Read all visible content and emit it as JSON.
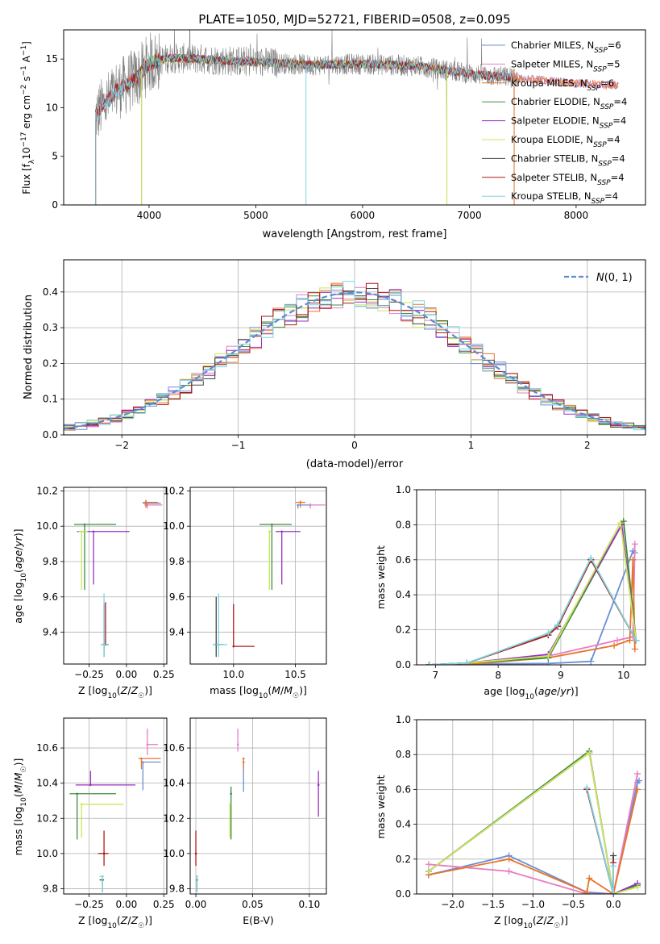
{
  "figure_title": "PLATE=1050, MJD=52721, FIBERID=0508, z=0.095",
  "colors": {
    "Chabrier MILES": "#6b8fd6",
    "Salpeter MILES": "#e87cc4",
    "Kroupa MILES": "#e8742a",
    "Chabrier ELODIE": "#3f8c3f",
    "Salpeter ELODIE": "#9b2fc2",
    "Kroupa ELODIE": "#c8e85a",
    "Chabrier STELIB": "#444444",
    "Salpeter STELIB": "#b01818",
    "Kroupa STELIB": "#7fd6e0",
    "gaussian": "#5b8bd0",
    "data": "#808080"
  },
  "chart_data": [
    {
      "id": "spectrum",
      "type": "line",
      "xlabel": "wavelength [Angstrom, rest frame]",
      "ylabel": "Flux [f_λ10^-17 erg cm^-2 s^-1 A^-1]",
      "xlim": [
        3200,
        8650
      ],
      "ylim": [
        0,
        18
      ],
      "xticks": [
        4000,
        5000,
        6000,
        7000,
        8000
      ],
      "yticks": [
        0,
        5,
        10,
        15
      ],
      "legend_position": "top-right",
      "series": [
        {
          "name": "Chabrier MILES, N_SSP=6"
        },
        {
          "name": "Salpeter MILES, N_SSP=5"
        },
        {
          "name": "Kroupa MILES, N_SSP=6"
        },
        {
          "name": "Chabrier ELODIE, N_SSP=4"
        },
        {
          "name": "Salpeter ELODIE, N_SSP=4"
        },
        {
          "name": "Kroupa ELODIE, N_SSP=4"
        },
        {
          "name": "Chabrier STELIB, N_SSP=4"
        },
        {
          "name": "Salpeter STELIB, N_SSP=4"
        },
        {
          "name": "Kroupa STELIB, N_SSP=4"
        }
      ],
      "continuum": [
        [
          3500,
          9.2
        ],
        [
          3600,
          10.5
        ],
        [
          3700,
          11.8
        ],
        [
          3800,
          12.5
        ],
        [
          3900,
          13.2
        ],
        [
          4000,
          14.6
        ],
        [
          4200,
          15.1
        ],
        [
          4500,
          15.0
        ],
        [
          4800,
          14.8
        ],
        [
          5000,
          14.7
        ],
        [
          5500,
          14.4
        ],
        [
          6000,
          14.5
        ],
        [
          6500,
          14.3
        ],
        [
          7000,
          13.5
        ],
        [
          7500,
          13.0
        ],
        [
          8000,
          12.5
        ],
        [
          8400,
          12.3
        ]
      ],
      "model_end_drops": {
        "MILES": 7420,
        "STELIB": 7420,
        "ELODIE": [
          3930,
          6790
        ]
      }
    },
    {
      "id": "residuals",
      "type": "histogram",
      "xlabel": "(data-model)/error",
      "ylabel": "Normed distribution",
      "xlim": [
        -2.5,
        2.5
      ],
      "ylim": [
        0,
        0.49
      ],
      "xticks": [
        -2,
        -1,
        0,
        1,
        2
      ],
      "yticks": [
        0.0,
        0.1,
        0.2,
        0.3,
        0.4
      ],
      "grid": true,
      "legend_label": "N(0,1)",
      "legend_position": "top-right",
      "bin_width": 0.1
    },
    {
      "id": "age_vs_Z",
      "type": "scatter",
      "xlabel": "Z [log10(Z/Z☉)]",
      "ylabel": "age  [log10(age/yr)]",
      "xlim": [
        -0.42,
        0.27
      ],
      "ylim": [
        9.22,
        10.22
      ],
      "xticks": [
        -0.25,
        0.0,
        0.25
      ],
      "yticks": [
        9.4,
        9.6,
        9.8,
        10.0,
        10.2
      ],
      "grid": true,
      "points": [
        {
          "model": "Chabrier MILES",
          "x": 0.13,
          "y": 10.13
        },
        {
          "model": "Salpeter MILES",
          "x": 0.14,
          "y": 10.12
        },
        {
          "model": "Kroupa MILES",
          "x": 0.13,
          "y": 10.135
        },
        {
          "model": "Chabrier ELODIE",
          "x": -0.28,
          "y": 10.01
        },
        {
          "model": "Salpeter ELODIE",
          "x": -0.22,
          "y": 9.97
        },
        {
          "model": "Kroupa ELODIE",
          "x": -0.3,
          "y": 9.97
        },
        {
          "model": "Chabrier STELIB",
          "x": -0.15,
          "y": 9.33
        },
        {
          "model": "Salpeter STELIB",
          "x": -0.14,
          "y": 9.33
        },
        {
          "model": "Kroupa STELIB",
          "x": -0.15,
          "y": 9.33
        }
      ]
    },
    {
      "id": "age_vs_mass",
      "type": "scatter",
      "xlabel": "mass [log10(M/M☉)]",
      "ylabel": "",
      "xlim": [
        9.65,
        10.75
      ],
      "ylim": [
        9.22,
        10.22
      ],
      "xticks": [
        10.0,
        10.5
      ],
      "yticks": [
        9.4,
        9.6,
        9.8,
        10.0,
        10.2
      ],
      "grid": true,
      "points": [
        {
          "model": "Chabrier MILES",
          "x": 10.52,
          "y": 10.12
        },
        {
          "model": "Salpeter MILES",
          "x": 10.62,
          "y": 10.12
        },
        {
          "model": "Kroupa MILES",
          "x": 10.54,
          "y": 10.135
        },
        {
          "model": "Chabrier ELODIE",
          "x": 10.31,
          "y": 10.01
        },
        {
          "model": "Salpeter ELODIE",
          "x": 10.39,
          "y": 9.97
        },
        {
          "model": "Kroupa ELODIE",
          "x": 10.29,
          "y": 9.97
        },
        {
          "model": "Chabrier STELIB",
          "x": 9.86,
          "y": 9.33
        },
        {
          "model": "Salpeter STELIB",
          "x": 10.0,
          "y": 9.32
        },
        {
          "model": "Kroupa STELIB",
          "x": 9.88,
          "y": 9.33
        }
      ]
    },
    {
      "id": "weight_vs_age",
      "type": "line",
      "xlabel": "age  [log10(age/yr)]",
      "ylabel": "mass weight",
      "xlim": [
        6.7,
        10.35
      ],
      "ylim": [
        0,
        1.0
      ],
      "xticks": [
        7,
        8,
        9,
        10
      ],
      "yticks": [
        0.0,
        0.2,
        0.4,
        0.6,
        0.8,
        1.0
      ],
      "grid": true,
      "series": [
        {
          "model": "Chabrier MILES",
          "x": [
            6.9,
            7.5,
            8.8,
            9.48,
            10.15,
            10.18
          ],
          "y": [
            0.0,
            0.005,
            0.008,
            0.02,
            0.65,
            0.64
          ]
        },
        {
          "model": "Salpeter MILES",
          "x": [
            6.9,
            7.6,
            8.8,
            9.9,
            10.15,
            10.18
          ],
          "y": [
            0.0,
            0.005,
            0.05,
            0.14,
            0.16,
            0.69
          ]
        },
        {
          "model": "Kroupa MILES",
          "x": [
            6.9,
            7.6,
            8.8,
            9.85,
            10.1,
            10.15,
            10.18
          ],
          "y": [
            0.0,
            0.005,
            0.04,
            0.11,
            0.14,
            0.6,
            0.09
          ]
        },
        {
          "model": "Chabrier ELODIE",
          "x": [
            6.9,
            7.5,
            8.8,
            10.0,
            10.2
          ],
          "y": [
            0.0,
            0.01,
            0.04,
            0.82,
            0.14
          ]
        },
        {
          "model": "Salpeter ELODIE",
          "x": [
            6.9,
            7.5,
            8.8,
            9.97,
            10.2
          ],
          "y": [
            0.0,
            0.01,
            0.06,
            0.8,
            0.14
          ]
        },
        {
          "model": "Kroupa ELODIE",
          "x": [
            6.9,
            7.5,
            8.8,
            9.95,
            10.2
          ],
          "y": [
            0.0,
            0.01,
            0.05,
            0.81,
            0.14
          ]
        },
        {
          "model": "Chabrier STELIB",
          "x": [
            6.9,
            7.5,
            8.8,
            8.95,
            9.48,
            10.2
          ],
          "y": [
            0.0,
            0.01,
            0.17,
            0.22,
            0.6,
            0.14
          ]
        },
        {
          "model": "Salpeter STELIB",
          "x": [
            6.9,
            7.5,
            8.8,
            8.95,
            9.48,
            10.2
          ],
          "y": [
            0.0,
            0.01,
            0.17,
            0.22,
            0.6,
            0.14
          ]
        },
        {
          "model": "Kroupa STELIB",
          "x": [
            6.9,
            7.5,
            8.8,
            8.95,
            9.48,
            10.2
          ],
          "y": [
            0.0,
            0.01,
            0.18,
            0.23,
            0.61,
            0.14
          ]
        }
      ]
    },
    {
      "id": "mass_vs_Z",
      "type": "scatter",
      "xlabel": "Z [log10(Z/Z☉)]",
      "ylabel": "mass [log10(M/M☉)]",
      "xlim": [
        -0.42,
        0.27
      ],
      "ylim": [
        9.77,
        10.77
      ],
      "xticks": [
        -0.25,
        0.0,
        0.25
      ],
      "yticks": [
        9.8,
        10.0,
        10.2,
        10.4,
        10.6
      ],
      "grid": true,
      "points": [
        {
          "model": "Chabrier MILES",
          "x": 0.11,
          "y": 10.52
        },
        {
          "model": "Salpeter MILES",
          "x": 0.14,
          "y": 10.62
        },
        {
          "model": "Kroupa MILES",
          "x": 0.1,
          "y": 10.54
        },
        {
          "model": "Chabrier ELODIE",
          "x": -0.33,
          "y": 10.34
        },
        {
          "model": "Salpeter ELODIE",
          "x": -0.24,
          "y": 10.39
        },
        {
          "model": "Kroupa ELODIE",
          "x": -0.3,
          "y": 10.28
        },
        {
          "model": "Chabrier STELIB",
          "x": -0.16,
          "y": 9.85
        },
        {
          "model": "Salpeter STELIB",
          "x": -0.15,
          "y": 10.0
        },
        {
          "model": "Kroupa STELIB",
          "x": -0.16,
          "y": 9.87
        }
      ]
    },
    {
      "id": "mass_vs_ebv",
      "type": "scatter",
      "xlabel": "E(B-V)",
      "ylabel": "",
      "xlim": [
        -0.005,
        0.115
      ],
      "ylim": [
        9.77,
        10.77
      ],
      "xticks": [
        0.0,
        0.05,
        0.1
      ],
      "yticks": [
        9.8,
        10.0,
        10.2,
        10.4,
        10.6
      ],
      "grid": true,
      "points": [
        {
          "model": "Chabrier MILES",
          "x": 0.042,
          "y": 10.52
        },
        {
          "model": "Salpeter MILES",
          "x": 0.037,
          "y": 10.62
        },
        {
          "model": "Kroupa MILES",
          "x": 0.042,
          "y": 10.54
        },
        {
          "model": "Chabrier ELODIE",
          "x": 0.031,
          "y": 10.34
        },
        {
          "model": "Salpeter ELODIE",
          "x": 0.108,
          "y": 10.39
        },
        {
          "model": "Kroupa ELODIE",
          "x": 0.03,
          "y": 10.28
        },
        {
          "model": "Chabrier STELIB",
          "x": 0.001,
          "y": 9.85
        },
        {
          "model": "Salpeter STELIB",
          "x": 0.0,
          "y": 10.0
        },
        {
          "model": "Kroupa STELIB",
          "x": 0.001,
          "y": 9.87
        }
      ]
    },
    {
      "id": "weight_vs_Z",
      "type": "line",
      "xlabel": "Z [log10(Z/Z☉)]",
      "ylabel": "mass weight",
      "xlim": [
        -2.45,
        0.4
      ],
      "ylim": [
        0,
        1.0
      ],
      "xticks": [
        -2.0,
        -1.5,
        -1.0,
        -0.5,
        0.0
      ],
      "yticks": [
        0.0,
        0.2,
        0.4,
        0.6,
        0.8,
        1.0
      ],
      "grid": true,
      "series": [
        {
          "model": "Chabrier MILES",
          "x": [
            -2.3,
            -1.3,
            -0.33,
            0.0,
            0.3,
            0.32
          ],
          "y": [
            0.11,
            0.22,
            0.01,
            0.0,
            0.64,
            0.65
          ]
        },
        {
          "model": "Salpeter MILES",
          "x": [
            -2.3,
            -1.3,
            -0.33,
            0.0,
            0.3
          ],
          "y": [
            0.17,
            0.13,
            0.0,
            0.0,
            0.69
          ]
        },
        {
          "model": "Kroupa MILES",
          "x": [
            -2.3,
            -1.3,
            -0.33,
            -0.3,
            0.0,
            0.3
          ],
          "y": [
            0.11,
            0.2,
            0.01,
            0.09,
            0.0,
            0.6
          ]
        },
        {
          "model": "Chabrier ELODIE",
          "x": [
            -2.3,
            -0.3,
            0.0,
            0.3
          ],
          "y": [
            0.13,
            0.82,
            0.0,
            0.05
          ]
        },
        {
          "model": "Salpeter ELODIE",
          "x": [
            -2.3,
            -0.3,
            0.0,
            0.3
          ],
          "y": [
            0.13,
            0.81,
            0.0,
            0.06
          ]
        },
        {
          "model": "Kroupa ELODIE",
          "x": [
            -2.3,
            -0.3,
            0.0,
            0.3
          ],
          "y": [
            0.13,
            0.81,
            0.0,
            0.04
          ]
        },
        {
          "model": "Chabrier STELIB",
          "x": [
            -0.33,
            0.0,
            0.0
          ],
          "y": [
            0.6,
            0.0,
            0.22
          ]
        },
        {
          "model": "Salpeter STELIB",
          "x": [
            -0.33,
            0.0,
            0.0
          ],
          "y": [
            0.6,
            0.0,
            0.18
          ]
        },
        {
          "model": "Kroupa STELIB",
          "x": [
            -0.33,
            0.0,
            0.0
          ],
          "y": [
            0.61,
            0.0,
            0.16
          ]
        }
      ]
    }
  ]
}
